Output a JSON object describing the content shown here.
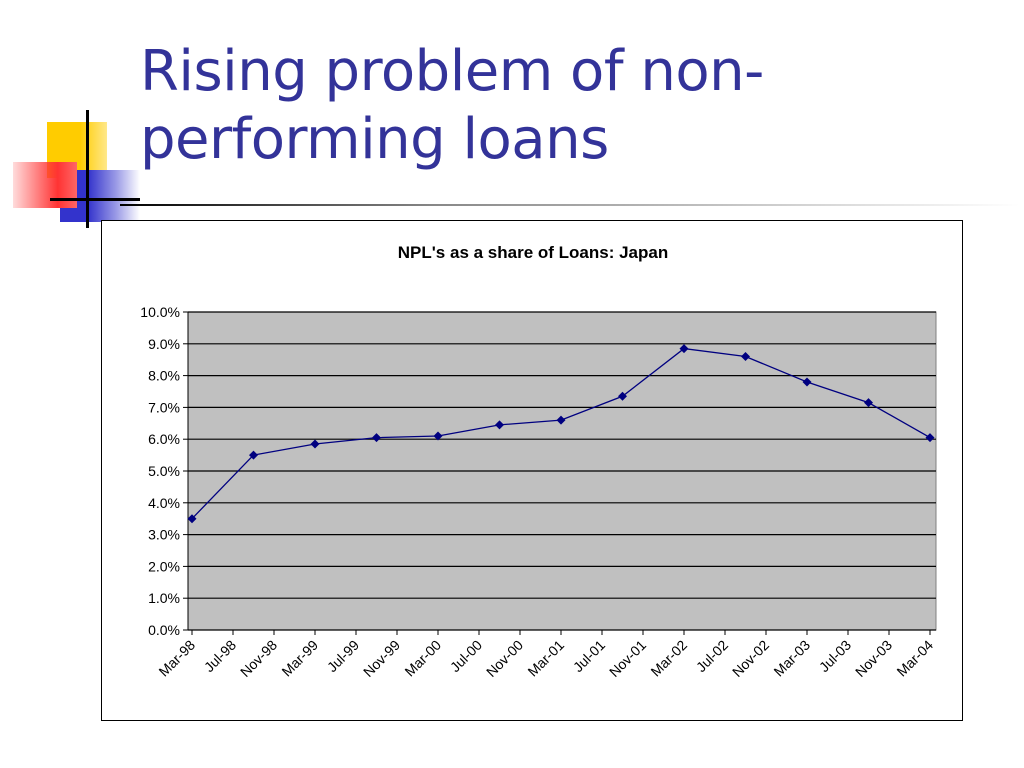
{
  "slide": {
    "title_line1": "Rising problem of non-",
    "title_line2": "performing loans"
  },
  "colors": {
    "title": "#333399",
    "plot_background": "#c0c0c0",
    "series": "#000080",
    "deco_yellow": "#ffcc00",
    "deco_red": "#ff3333",
    "deco_blue": "#3333cc"
  },
  "chart_data": {
    "type": "line",
    "title": "NPL's as a share of Loans: Japan",
    "xlabel": "",
    "ylabel": "",
    "y_tick_labels": [
      "0.0%",
      "1.0%",
      "2.0%",
      "3.0%",
      "4.0%",
      "5.0%",
      "6.0%",
      "7.0%",
      "8.0%",
      "9.0%",
      "10.0%"
    ],
    "ylim": [
      0,
      10
    ],
    "y_unit": "%",
    "x_tick_labels": [
      "Mar-98",
      "Jul-98",
      "Nov-98",
      "Mar-99",
      "Jul-99",
      "Nov-99",
      "Mar-00",
      "Jul-00",
      "Nov-00",
      "Mar-01",
      "Jul-01",
      "Nov-01",
      "Mar-02",
      "Jul-02",
      "Nov-02",
      "Mar-03",
      "Jul-03",
      "Nov-03",
      "Mar-04"
    ],
    "grid": true,
    "legend": "none",
    "series": [
      {
        "x": [
          "Mar-98",
          "Sep-98",
          "Mar-99",
          "Sep-99",
          "Mar-00",
          "Sep-00",
          "Mar-01",
          "Sep-01",
          "Mar-02",
          "Sep-02",
          "Mar-03",
          "Sep-03",
          "Mar-04"
        ],
        "values": [
          3.5,
          5.5,
          5.85,
          6.05,
          6.1,
          6.45,
          6.6,
          7.35,
          8.85,
          8.6,
          7.8,
          7.15,
          6.05
        ]
      }
    ]
  }
}
